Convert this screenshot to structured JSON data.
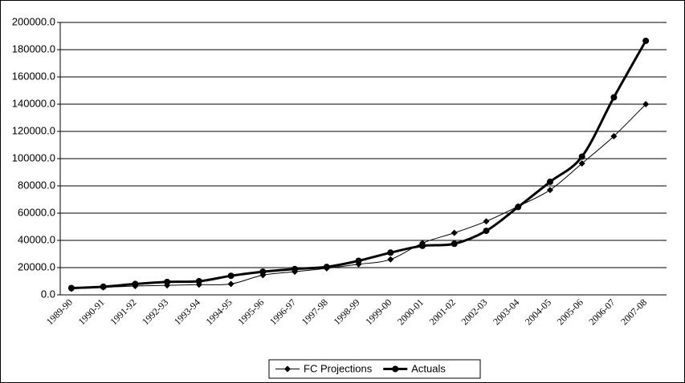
{
  "chart_data": {
    "type": "line",
    "categories": [
      "1989-90",
      "1990-91",
      "1991-92",
      "1992-93",
      "1993-94",
      "1994-95",
      "1995-96",
      "1996-97",
      "1997-98",
      "1998-99",
      "1999-00",
      "2000-01",
      "2001-02",
      "2002-03",
      "2003-04",
      "2004-05",
      "2005-06",
      "2006-07",
      "2007-08"
    ],
    "series": [
      {
        "name": "FC Projections",
        "color": "#000000",
        "marker": "diamond",
        "values": [
          4500,
          5500,
          6500,
          7000,
          7500,
          8000,
          14500,
          17000,
          19500,
          22500,
          26000,
          38000,
          45500,
          54000,
          65000,
          77000,
          96500,
          116500,
          140000
        ]
      },
      {
        "name": "Actuals",
        "color": "#000000",
        "marker": "circle",
        "values": [
          5000,
          6000,
          8000,
          9500,
          10000,
          14000,
          17000,
          19000,
          20500,
          25000,
          31000,
          36000,
          37500,
          47000,
          64500,
          83000,
          101500,
          145000,
          186500
        ]
      }
    ],
    "ylim": [
      0,
      200000
    ],
    "yticks": [
      {
        "value": 0,
        "label": "0.0"
      },
      {
        "value": 20000,
        "label": "20000.0"
      },
      {
        "value": 40000,
        "label": "40000.0"
      },
      {
        "value": 60000,
        "label": "60000.0"
      },
      {
        "value": 80000,
        "label": "80000.0"
      },
      {
        "value": 100000,
        "label": "100000.0"
      },
      {
        "value": 120000,
        "label": "120000.0"
      },
      {
        "value": 140000,
        "label": "140000.0"
      },
      {
        "value": 160000,
        "label": "160000.0"
      },
      {
        "value": 180000,
        "label": "180000.0"
      },
      {
        "value": 200000,
        "label": "200000.0"
      }
    ],
    "grid": true,
    "legend": "bottom"
  }
}
